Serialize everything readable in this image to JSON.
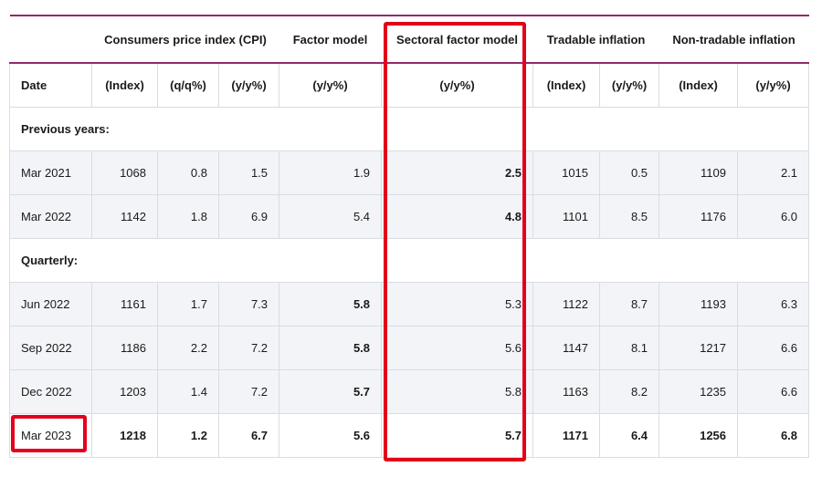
{
  "header": {
    "groups": [
      {
        "label": ""
      },
      {
        "label": "Consumers price index (CPI)"
      },
      {
        "label": "Factor model"
      },
      {
        "label": "Sectoral factor model"
      },
      {
        "label": "Tradable inflation"
      },
      {
        "label": "Non-tradable inflation"
      }
    ],
    "units": [
      "Date",
      "(Index)",
      "(q/q%)",
      "(y/y%)",
      "(y/y%)",
      "(y/y%)",
      "(Index)",
      "(y/y%)",
      "(Index)",
      "(y/y%)"
    ]
  },
  "sections": [
    {
      "title": "Previous years:",
      "rows": [
        {
          "date": "Mar 2021",
          "cpi_index": "1068",
          "cpi_qq": "0.8",
          "cpi_yy": "1.5",
          "factor": "1.9",
          "sectoral": "2.5",
          "trad_index": "1015",
          "trad_yy": "0.5",
          "nontrad_index": "1109",
          "nontrad_yy": "2.1"
        },
        {
          "date": "Mar 2022",
          "cpi_index": "1142",
          "cpi_qq": "1.8",
          "cpi_yy": "6.9",
          "factor": "5.4",
          "sectoral": "4.8",
          "trad_index": "1101",
          "trad_yy": "8.5",
          "nontrad_index": "1176",
          "nontrad_yy": "6.0"
        }
      ]
    },
    {
      "title": "Quarterly:",
      "rows": [
        {
          "date": "Jun 2022",
          "cpi_index": "1161",
          "cpi_qq": "1.7",
          "cpi_yy": "7.3",
          "factor": "5.8",
          "sectoral": "5.3",
          "trad_index": "1122",
          "trad_yy": "8.7",
          "nontrad_index": "1193",
          "nontrad_yy": "6.3"
        },
        {
          "date": "Sep 2022",
          "cpi_index": "1186",
          "cpi_qq": "2.2",
          "cpi_yy": "7.2",
          "factor": "5.8",
          "sectoral": "5.6",
          "trad_index": "1147",
          "trad_yy": "8.1",
          "nontrad_index": "1217",
          "nontrad_yy": "6.6"
        },
        {
          "date": "Dec 2022",
          "cpi_index": "1203",
          "cpi_qq": "1.4",
          "cpi_yy": "7.2",
          "factor": "5.7",
          "sectoral": "5.8",
          "trad_index": "1163",
          "trad_yy": "8.2",
          "nontrad_index": "1235",
          "nontrad_yy": "6.6"
        },
        {
          "date": "Mar 2023",
          "cpi_index": "1218",
          "cpi_qq": "1.2",
          "cpi_yy": "6.7",
          "factor": "5.6",
          "sectoral": "5.7",
          "trad_index": "1171",
          "trad_yy": "6.4",
          "nontrad_index": "1256",
          "nontrad_yy": "6.8"
        }
      ]
    }
  ],
  "highlight": {
    "color": "#e3001b",
    "column": "Sectoral factor model",
    "cell": "Mar 2023"
  },
  "colors": {
    "accent_rule": "#8e2a6b",
    "row_shade": "#f2f4f8",
    "grid": "#d9dce3"
  }
}
